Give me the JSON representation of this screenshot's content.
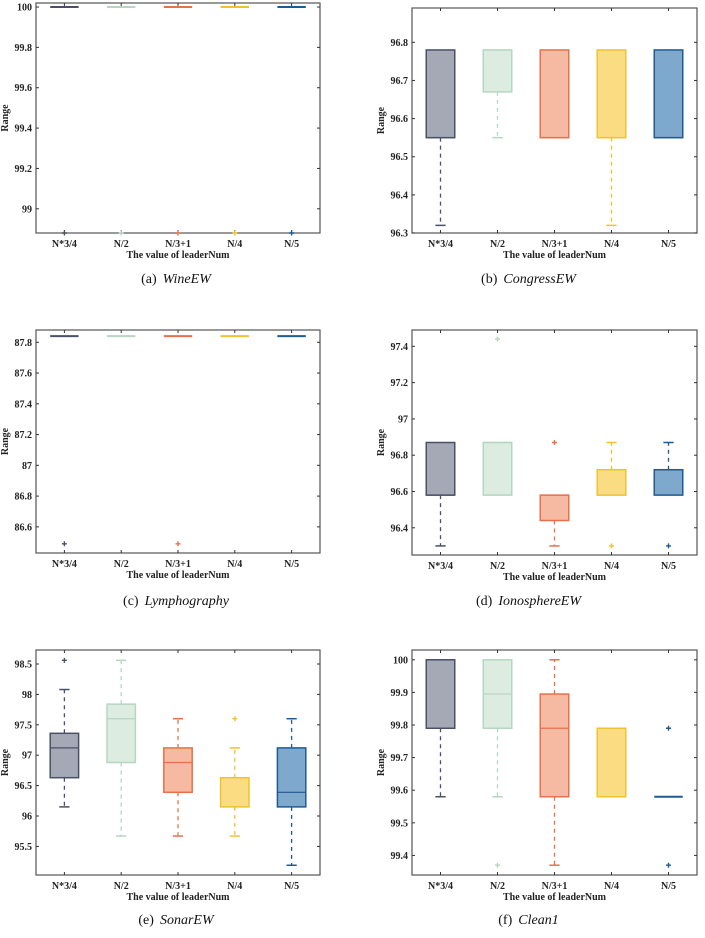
{
  "figure": {
    "categories": [
      "N*3/4",
      "N/2",
      "N/3+1",
      "N/4",
      "N/5"
    ],
    "xlabel": "The value of leaderNum",
    "ylabel": "Range",
    "colors": {
      "fill": [
        "#a5a9b5",
        "#dcece0",
        "#f6b9a1",
        "#fadd82",
        "#7ea8cc"
      ],
      "stroke": [
        "#4a5068",
        "#b7d6c2",
        "#e8714d",
        "#f0c230",
        "#1e5b93"
      ]
    }
  },
  "chart_data": [
    {
      "type": "box",
      "label": "(a)",
      "title": "WineEW",
      "xlabel": "The value of leaderNum",
      "ylabel": "Range",
      "categories": [
        "N*3/4",
        "N/2",
        "N/3+1",
        "N/4",
        "N/5"
      ],
      "ylim": [
        98.88,
        100.02
      ],
      "yticks": [
        99,
        99.2,
        99.4,
        99.6,
        99.8,
        100
      ],
      "yticklabels": [
        "99",
        "99.2",
        "99.4",
        "99.6",
        "99.8",
        "100"
      ],
      "boxes": [
        {
          "q1": 100,
          "median": 100,
          "q3": 100,
          "whisker_low": 100,
          "whisker_high": 100,
          "outliers": [
            98.88
          ]
        },
        {
          "q1": 100,
          "median": 100,
          "q3": 100,
          "whisker_low": 100,
          "whisker_high": 100,
          "outliers": [
            98.88
          ]
        },
        {
          "q1": 100,
          "median": 100,
          "q3": 100,
          "whisker_low": 100,
          "whisker_high": 100,
          "outliers": [
            98.88
          ]
        },
        {
          "q1": 100,
          "median": 100,
          "q3": 100,
          "whisker_low": 100,
          "whisker_high": 100,
          "outliers": [
            98.88
          ]
        },
        {
          "q1": 100,
          "median": 100,
          "q3": 100,
          "whisker_low": 100,
          "whisker_high": 100,
          "outliers": [
            98.88
          ]
        }
      ]
    },
    {
      "type": "box",
      "label": "(b)",
      "title": "CongressEW",
      "xlabel": "The value of leaderNum",
      "ylabel": "Range",
      "categories": [
        "N*3/4",
        "N/2",
        "N/3+1",
        "N/4",
        "N/5"
      ],
      "ylim": [
        96.3,
        96.89
      ],
      "yticks": [
        96.3,
        96.4,
        96.5,
        96.6,
        96.7,
        96.8
      ],
      "yticklabels": [
        "96.3",
        "96.4",
        "96.5",
        "96.6",
        "96.7",
        "96.8"
      ],
      "boxes": [
        {
          "q1": 96.55,
          "median": 96.55,
          "q3": 96.78,
          "whisker_low": 96.32,
          "whisker_high": 96.78,
          "outliers": []
        },
        {
          "q1": 96.67,
          "median": 96.78,
          "q3": 96.78,
          "whisker_low": 96.55,
          "whisker_high": 96.78,
          "outliers": []
        },
        {
          "q1": 96.55,
          "median": 96.55,
          "q3": 96.78,
          "whisker_low": 96.55,
          "whisker_high": 96.78,
          "outliers": []
        },
        {
          "q1": 96.55,
          "median": 96.55,
          "q3": 96.78,
          "whisker_low": 96.32,
          "whisker_high": 96.78,
          "outliers": []
        },
        {
          "q1": 96.55,
          "median": 96.55,
          "q3": 96.78,
          "whisker_low": 96.55,
          "whisker_high": 96.78,
          "outliers": []
        }
      ]
    },
    {
      "type": "box",
      "label": "(c)",
      "title": "Lymphography",
      "xlabel": "The value of leaderNum",
      "ylabel": "Range",
      "categories": [
        "N*3/4",
        "N/2",
        "N/3+1",
        "N/4",
        "N/5"
      ],
      "ylim": [
        86.43,
        87.88
      ],
      "yticks": [
        86.6,
        86.8,
        87,
        87.2,
        87.4,
        87.6,
        87.8
      ],
      "yticklabels": [
        "86.6",
        "86.8",
        "87",
        "87.2",
        "87.4",
        "87.6",
        "87.8"
      ],
      "boxes": [
        {
          "q1": 87.84,
          "median": 87.84,
          "q3": 87.84,
          "whisker_low": 87.84,
          "whisker_high": 87.84,
          "outliers": [
            86.49
          ]
        },
        {
          "q1": 87.84,
          "median": 87.84,
          "q3": 87.84,
          "whisker_low": 87.84,
          "whisker_high": 87.84,
          "outliers": []
        },
        {
          "q1": 87.84,
          "median": 87.84,
          "q3": 87.84,
          "whisker_low": 87.84,
          "whisker_high": 87.84,
          "outliers": [
            86.49
          ]
        },
        {
          "q1": 87.84,
          "median": 87.84,
          "q3": 87.84,
          "whisker_low": 87.84,
          "whisker_high": 87.84,
          "outliers": []
        },
        {
          "q1": 87.84,
          "median": 87.84,
          "q3": 87.84,
          "whisker_low": 87.84,
          "whisker_high": 87.84,
          "outliers": []
        }
      ]
    },
    {
      "type": "box",
      "label": "(d)",
      "title": "IonosphereEW",
      "xlabel": "The value of leaderNum",
      "ylabel": "Range",
      "categories": [
        "N*3/4",
        "N/2",
        "N/3+1",
        "N/4",
        "N/5"
      ],
      "ylim": [
        96.25,
        97.49
      ],
      "yticks": [
        96.4,
        96.6,
        96.8,
        97,
        97.2,
        97.4
      ],
      "yticklabels": [
        "96.4",
        "96.6",
        "96.8",
        "97",
        "97.2",
        "97.4"
      ],
      "boxes": [
        {
          "q1": 96.58,
          "median": 96.58,
          "q3": 96.87,
          "whisker_low": 96.3,
          "whisker_high": 96.87,
          "outliers": []
        },
        {
          "q1": 96.58,
          "median": 96.87,
          "q3": 96.87,
          "whisker_low": 96.58,
          "whisker_high": 96.87,
          "outliers": [
            97.44
          ]
        },
        {
          "q1": 96.44,
          "median": 96.58,
          "q3": 96.58,
          "whisker_low": 96.3,
          "whisker_high": 96.58,
          "outliers": [
            96.87
          ]
        },
        {
          "q1": 96.58,
          "median": 96.72,
          "q3": 96.72,
          "whisker_low": 96.58,
          "whisker_high": 96.87,
          "outliers": [
            96.3
          ]
        },
        {
          "q1": 96.58,
          "median": 96.72,
          "q3": 96.72,
          "whisker_low": 96.58,
          "whisker_high": 96.87,
          "outliers": [
            96.3
          ]
        }
      ]
    },
    {
      "type": "box",
      "label": "(e)",
      "title": "SonarEW",
      "xlabel": "The value of leaderNum",
      "ylabel": "Range",
      "categories": [
        "N*3/4",
        "N/2",
        "N/3+1",
        "N/4",
        "N/5"
      ],
      "ylim": [
        95.03,
        98.73
      ],
      "yticks": [
        95.5,
        96,
        96.5,
        97,
        97.5,
        98,
        98.5
      ],
      "yticklabels": [
        "95.5",
        "96",
        "96.5",
        "97",
        "97.5",
        "98",
        "98.5"
      ],
      "boxes": [
        {
          "q1": 96.63,
          "median": 97.12,
          "q3": 97.36,
          "whisker_low": 96.15,
          "whisker_high": 98.08,
          "outliers": [
            98.56
          ]
        },
        {
          "q1": 96.88,
          "median": 97.6,
          "q3": 97.84,
          "whisker_low": 95.67,
          "whisker_high": 98.56,
          "outliers": []
        },
        {
          "q1": 96.39,
          "median": 96.88,
          "q3": 97.12,
          "whisker_low": 95.67,
          "whisker_high": 97.6,
          "outliers": []
        },
        {
          "q1": 96.15,
          "median": 96.15,
          "q3": 96.63,
          "whisker_low": 95.67,
          "whisker_high": 97.12,
          "outliers": [
            97.6
          ]
        },
        {
          "q1": 96.15,
          "median": 96.39,
          "q3": 97.12,
          "whisker_low": 95.19,
          "whisker_high": 97.6,
          "outliers": []
        }
      ]
    },
    {
      "type": "box",
      "label": "(f)",
      "title": "Clean1",
      "xlabel": "The value of leaderNum",
      "ylabel": "Range",
      "categories": [
        "N*3/4",
        "N/2",
        "N/3+1",
        "N/4",
        "N/5"
      ],
      "ylim": [
        99.34,
        100.03
      ],
      "yticks": [
        99.4,
        99.5,
        99.6,
        99.7,
        99.8,
        99.9,
        100
      ],
      "yticklabels": [
        "99.4",
        "99.5",
        "99.6",
        "99.7",
        "99.8",
        "99.9",
        "100"
      ],
      "boxes": [
        {
          "q1": 99.79,
          "median": 100,
          "q3": 100,
          "whisker_low": 99.58,
          "whisker_high": 100,
          "outliers": []
        },
        {
          "q1": 99.79,
          "median": 99.895,
          "q3": 100,
          "whisker_low": 99.58,
          "whisker_high": 100,
          "outliers": [
            99.37
          ]
        },
        {
          "q1": 99.58,
          "median": 99.79,
          "q3": 99.895,
          "whisker_low": 99.37,
          "whisker_high": 100,
          "outliers": []
        },
        {
          "q1": 99.58,
          "median": 99.58,
          "q3": 99.79,
          "whisker_low": 99.58,
          "whisker_high": 99.79,
          "outliers": []
        },
        {
          "q1": 99.58,
          "median": 99.58,
          "q3": 99.58,
          "whisker_low": 99.58,
          "whisker_high": 99.58,
          "outliers": [
            99.79,
            99.37
          ]
        }
      ]
    }
  ]
}
